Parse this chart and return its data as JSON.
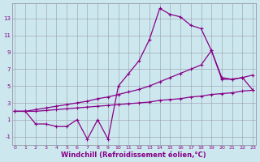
{
  "background_color": "#cce8ee",
  "line_color": "#880088",
  "marker": "+",
  "markersize": 3.5,
  "linewidth": 0.9,
  "xlabel": "Windchill (Refroidissement éolien,°C)",
  "xlabel_fontsize": 6,
  "ylabel_ticks": [
    -1,
    1,
    3,
    5,
    7,
    9,
    11,
    13
  ],
  "xlabel_ticks": [
    0,
    1,
    2,
    3,
    4,
    5,
    6,
    7,
    8,
    9,
    10,
    11,
    12,
    13,
    14,
    15,
    16,
    17,
    18,
    19,
    20,
    21,
    22,
    23
  ],
  "xlim": [
    -0.3,
    23.3
  ],
  "ylim": [
    -2.0,
    14.8
  ],
  "series": [
    {
      "x": [
        0,
        1,
        2,
        3,
        4,
        5,
        6,
        7,
        8,
        9,
        10,
        11,
        12,
        13,
        14,
        15,
        16,
        17,
        18,
        19,
        20,
        21,
        22,
        23
      ],
      "y": [
        2.0,
        2.0,
        0.5,
        0.5,
        0.2,
        0.2,
        1.0,
        -1.3,
        1.0,
        -1.3,
        5.0,
        6.5,
        8.0,
        10.5,
        14.2,
        13.5,
        13.2,
        12.2,
        11.8,
        9.2,
        5.8,
        5.8,
        6.0,
        4.5
      ]
    },
    {
      "x": [
        0,
        1,
        2,
        3,
        4,
        5,
        6,
        7,
        8,
        9,
        10,
        11,
        12,
        13,
        14,
        15,
        16,
        17,
        18,
        19,
        20,
        21,
        22,
        23
      ],
      "y": [
        2.0,
        2.0,
        2.2,
        2.4,
        2.6,
        2.8,
        3.0,
        3.2,
        3.5,
        3.7,
        4.0,
        4.3,
        4.6,
        5.0,
        5.5,
        6.0,
        6.5,
        7.0,
        7.5,
        9.2,
        6.0,
        5.8,
        6.0,
        6.3
      ]
    },
    {
      "x": [
        0,
        1,
        2,
        3,
        4,
        5,
        6,
        7,
        8,
        9,
        10,
        11,
        12,
        13,
        14,
        15,
        16,
        17,
        18,
        19,
        20,
        21,
        22,
        23
      ],
      "y": [
        2.0,
        2.0,
        2.0,
        2.1,
        2.2,
        2.3,
        2.4,
        2.5,
        2.6,
        2.7,
        2.8,
        2.9,
        3.0,
        3.1,
        3.3,
        3.4,
        3.5,
        3.7,
        3.8,
        4.0,
        4.1,
        4.2,
        4.4,
        4.5
      ]
    }
  ]
}
